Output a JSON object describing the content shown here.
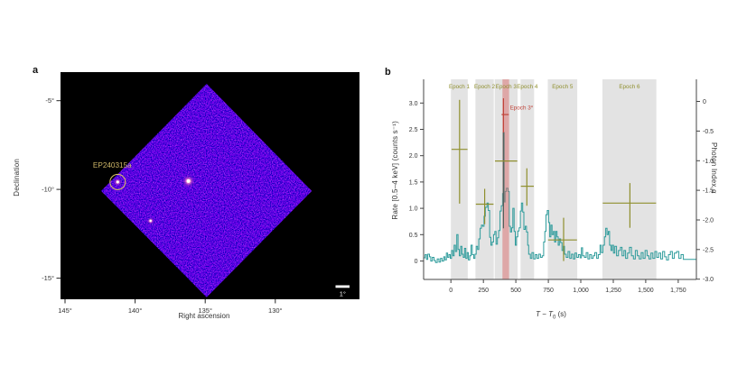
{
  "figure": {
    "panel_a_letter": "a",
    "panel_b_letter": "b",
    "panel_a": {
      "xlabel": "Right ascension",
      "ylabel": "Declination",
      "source_label": "EP240315a",
      "scale_bar_label": "1°"
    },
    "panel_b": {
      "xlabel_t1": "T",
      "xlabel_minus": " − ",
      "xlabel_t2": "T",
      "xlabel_sub": "0",
      "xlabel_unit": " (s)",
      "ylabel_left": "Rate [0.5–4 keV] (counts s⁻¹)",
      "ylabel_right": "Photon Index α"
    }
  },
  "colors": {
    "field_base": "#120c4a",
    "ring": "#d4ba69",
    "source_label": "#cfb768",
    "scalebar": "#ffffff",
    "curve": "#2d9b9b",
    "epoch_band": "#e3e3e3",
    "epoch_label": "#8f8f2e",
    "cross": "#8f8f2e",
    "cross_dark": "#50615d",
    "special": "#c0443a",
    "special_band": "#d96b6b",
    "axis": "#444444",
    "tick_text": "#333333"
  },
  "chart_data": [
    {
      "panel": "a",
      "type": "heatmap",
      "description": "Einstein Probe WXT X-ray sky image, diamond field of view with detected sources",
      "xlabel": "Right ascension",
      "ylabel": "Declination",
      "x_range_deg": [
        145.32,
        124.0
      ],
      "y_range_deg": [
        -3.39,
        -16.19
      ],
      "x_ticks": [
        {
          "v": 145,
          "label": "145°"
        },
        {
          "v": 140,
          "label": "140°"
        },
        {
          "v": 135,
          "label": "135°"
        },
        {
          "v": 130,
          "label": "130°"
        }
      ],
      "y_ticks": [
        {
          "v": -5,
          "label": "-5°"
        },
        {
          "v": -10,
          "label": "-10°"
        },
        {
          "v": -15,
          "label": "-15°"
        }
      ],
      "fov_corners_radec": [
        [
          134.9,
          -4.05
        ],
        [
          127.4,
          -10.09
        ],
        [
          134.9,
          -16.08
        ],
        [
          142.42,
          -10.09
        ]
      ],
      "sources": [
        {
          "name": "EP240315a",
          "ra": 141.24,
          "dec": -9.58,
          "glow_r": 4.5,
          "core_r": 1.5,
          "ringed": true
        },
        {
          "name": "bright central source",
          "ra": 136.2,
          "dec": -9.53,
          "glow_r": 7,
          "core_r": 2,
          "ringed": false
        },
        {
          "name": "faint source",
          "ra": 138.9,
          "dec": -11.77,
          "glow_r": 4,
          "core_r": 1.2,
          "ringed": false
        }
      ],
      "source_label": "EP240315a",
      "scale_bar": {
        "label": "1°",
        "deg": 1
      }
    },
    {
      "panel": "b",
      "type": "line",
      "description": "0.5–4 keV light curve of EP240315a with photon-index measurements per epoch",
      "xlabel": "T − T₀ (s)",
      "ylabel_left": "Rate [0.5–4 keV] (counts s⁻¹)",
      "ylabel_right": "Photon Index α",
      "x_range": [
        -210,
        1890
      ],
      "y_left_range": [
        -0.35,
        3.45
      ],
      "x_ticks": [
        {
          "v": 0,
          "label": "0"
        },
        {
          "v": 250,
          "label": "250"
        },
        {
          "v": 500,
          "label": "500"
        },
        {
          "v": 750,
          "label": "750"
        },
        {
          "v": 1000,
          "label": "1,000"
        },
        {
          "v": 1250,
          "label": "1,250"
        },
        {
          "v": 1500,
          "label": "1,500"
        },
        {
          "v": 1750,
          "label": "1,750"
        }
      ],
      "y_ticks_left": [
        {
          "v": 0,
          "label": "0"
        },
        {
          "v": 0.5,
          "label": "0.5"
        },
        {
          "v": 1.0,
          "label": "1.0"
        },
        {
          "v": 1.5,
          "label": "1.5"
        },
        {
          "v": 2.0,
          "label": "2.0"
        },
        {
          "v": 2.5,
          "label": "2.5"
        },
        {
          "v": 3.0,
          "label": "3.0"
        }
      ],
      "alpha_axis": {
        "alpha0_rate": 3.03,
        "rate_per_unit": 1.125,
        "ticks": [
          {
            "v": 0,
            "label": "0"
          },
          {
            "v": -0.5,
            "label": "-0.5"
          },
          {
            "v": -1.0,
            "label": "-1.0"
          },
          {
            "v": -1.5,
            "label": "-1.5"
          },
          {
            "v": -2.0,
            "label": "-2.0"
          },
          {
            "v": -2.5,
            "label": "-2.5"
          },
          {
            "v": -3.0,
            "label": "-3.0"
          }
        ]
      },
      "epochs": [
        {
          "name": "Epoch 1",
          "start": 0,
          "end": 130
        },
        {
          "name": "Epoch 2",
          "start": 189,
          "end": 330
        },
        {
          "name": "Epoch 3",
          "start": 337,
          "end": 513
        },
        {
          "name": "Epoch 4",
          "start": 536,
          "end": 640
        },
        {
          "name": "Epoch 5",
          "start": 746,
          "end": 973
        },
        {
          "name": "Epoch 6",
          "start": 1167,
          "end": 1582
        }
      ],
      "special_epoch": {
        "name": "Epoch 3*",
        "start": 397,
        "end": 448,
        "label_x": 455,
        "label_rate": 2.88
      },
      "crosses": [
        {
          "epoch": "Epoch 1",
          "x": 67,
          "x_lo": 5,
          "x_hi": 128,
          "rate": 2.12,
          "rate_lo": 1.09,
          "rate_hi": 3.06,
          "alpha": -0.81
        },
        {
          "epoch": "Epoch 2",
          "x": 260,
          "x_lo": 192,
          "x_hi": 328,
          "rate": 1.08,
          "rate_lo": 0.7,
          "rate_hi": 1.37,
          "alpha": -1.73
        },
        {
          "epoch": "Epoch 3",
          "x": 405,
          "x_lo": 339,
          "x_hi": 511,
          "rate": 1.9,
          "rate_lo": 0.62,
          "rate_hi": 2.44,
          "alpha": -1.0,
          "dark_vertical": true
        },
        {
          "epoch": "Epoch 3*",
          "x": 405,
          "x_lo": 390,
          "x_hi": 446,
          "rate": 2.78,
          "rate_lo": 2.44,
          "rate_hi": 3.09,
          "alpha": -0.22,
          "red": true
        },
        {
          "epoch": "Epoch 4",
          "x": 585,
          "x_lo": 538,
          "x_hi": 638,
          "rate": 1.42,
          "rate_lo": 1.05,
          "rate_hi": 1.76,
          "alpha": -1.43
        },
        {
          "epoch": "Epoch 5",
          "x": 868,
          "x_lo": 748,
          "x_hi": 971,
          "rate": 0.4,
          "rate_lo": 0.0,
          "rate_hi": 0.82,
          "alpha": -2.34
        },
        {
          "epoch": "Epoch 6",
          "x": 1378,
          "x_lo": 1169,
          "x_hi": 1580,
          "rate": 1.1,
          "rate_lo": 0.63,
          "rate_hi": 1.48,
          "alpha": -1.72
        }
      ],
      "light_curve_step_points": [
        [
          -210,
          0.06
        ],
        [
          -198,
          0.12
        ],
        [
          -188,
          0.03
        ],
        [
          -178,
          0.13
        ],
        [
          -165,
          0.08
        ],
        [
          -155,
          0.0
        ],
        [
          -143,
          0.07
        ],
        [
          -130,
          0.01
        ],
        [
          -118,
          -0.03
        ],
        [
          -105,
          0.04
        ],
        [
          -92,
          -0.02
        ],
        [
          -80,
          0.05
        ],
        [
          -68,
          0.0
        ],
        [
          -55,
          0.08
        ],
        [
          -45,
          0.02
        ],
        [
          -35,
          0.15
        ],
        [
          -25,
          0.07
        ],
        [
          -15,
          0.12
        ],
        [
          -5,
          0.05
        ],
        [
          5,
          0.2
        ],
        [
          15,
          0.1
        ],
        [
          25,
          0.3
        ],
        [
          35,
          0.18
        ],
        [
          45,
          0.5
        ],
        [
          55,
          0.22
        ],
        [
          65,
          0.1
        ],
        [
          75,
          0.28
        ],
        [
          85,
          0.13
        ],
        [
          95,
          0.07
        ],
        [
          105,
          0.24
        ],
        [
          115,
          0.05
        ],
        [
          125,
          0.16
        ],
        [
          135,
          0.02
        ],
        [
          145,
          0.1
        ],
        [
          155,
          0.3
        ],
        [
          165,
          0.12
        ],
        [
          175,
          0.05
        ],
        [
          185,
          0.13
        ],
        [
          195,
          0.28
        ],
        [
          205,
          0.22
        ],
        [
          215,
          0.42
        ],
        [
          225,
          0.62
        ],
        [
          235,
          0.68
        ],
        [
          245,
          0.66
        ],
        [
          255,
          0.85
        ],
        [
          265,
          1.02
        ],
        [
          278,
          1.1
        ],
        [
          288,
          0.96
        ],
        [
          298,
          0.45
        ],
        [
          308,
          0.3
        ],
        [
          318,
          0.36
        ],
        [
          328,
          0.5
        ],
        [
          338,
          0.56
        ],
        [
          348,
          0.32
        ],
        [
          358,
          0.44
        ],
        [
          368,
          0.58
        ],
        [
          378,
          0.95
        ],
        [
          388,
          1.05
        ],
        [
          398,
          1.28
        ],
        [
          403,
          2.44
        ],
        [
          411,
          1.12
        ],
        [
          417,
          1.32
        ],
        [
          427,
          1.38
        ],
        [
          440,
          1.32
        ],
        [
          449,
          0.66
        ],
        [
          458,
          0.55
        ],
        [
          467,
          0.63
        ],
        [
          477,
          1.0
        ],
        [
          487,
          0.56
        ],
        [
          496,
          0.3
        ],
        [
          505,
          0.46
        ],
        [
          515,
          0.57
        ],
        [
          525,
          0.63
        ],
        [
          535,
          0.95
        ],
        [
          543,
          1.1
        ],
        [
          553,
          0.93
        ],
        [
          562,
          0.6
        ],
        [
          572,
          0.66
        ],
        [
          582,
          0.55
        ],
        [
          591,
          0.3
        ],
        [
          599,
          0.13
        ],
        [
          612,
          0.05
        ],
        [
          624,
          0.16
        ],
        [
          637,
          0.04
        ],
        [
          650,
          0.12
        ],
        [
          663,
          0.05
        ],
        [
          676,
          0.13
        ],
        [
          690,
          0.07
        ],
        [
          703,
          0.1
        ],
        [
          714,
          0.36
        ],
        [
          723,
          0.56
        ],
        [
          732,
          0.88
        ],
        [
          742,
          0.96
        ],
        [
          752,
          0.73
        ],
        [
          761,
          0.46
        ],
        [
          770,
          0.68
        ],
        [
          779,
          0.5
        ],
        [
          789,
          0.56
        ],
        [
          798,
          0.36
        ],
        [
          807,
          0.56
        ],
        [
          817,
          0.46
        ],
        [
          826,
          0.3
        ],
        [
          835,
          0.42
        ],
        [
          845,
          0.35
        ],
        [
          855,
          0.2
        ],
        [
          865,
          0.28
        ],
        [
          875,
          0.13
        ],
        [
          888,
          0.07
        ],
        [
          902,
          0.18
        ],
        [
          915,
          0.05
        ],
        [
          928,
          0.13
        ],
        [
          942,
          0.04
        ],
        [
          955,
          0.15
        ],
        [
          968,
          0.07
        ],
        [
          982,
          0.12
        ],
        [
          995,
          0.06
        ],
        [
          1005,
          0.25
        ],
        [
          1014,
          0.1
        ],
        [
          1028,
          0.07
        ],
        [
          1042,
          0.16
        ],
        [
          1055,
          0.04
        ],
        [
          1068,
          0.12
        ],
        [
          1082,
          0.05
        ],
        [
          1095,
          0.1
        ],
        [
          1108,
          0.16
        ],
        [
          1122,
          0.05
        ],
        [
          1135,
          0.12
        ],
        [
          1148,
          0.3
        ],
        [
          1158,
          0.16
        ],
        [
          1170,
          0.3
        ],
        [
          1182,
          0.46
        ],
        [
          1192,
          0.62
        ],
        [
          1202,
          0.5
        ],
        [
          1212,
          0.56
        ],
        [
          1222,
          0.3
        ],
        [
          1232,
          0.2
        ],
        [
          1242,
          0.3
        ],
        [
          1252,
          0.15
        ],
        [
          1262,
          0.28
        ],
        [
          1275,
          0.1
        ],
        [
          1290,
          0.2
        ],
        [
          1305,
          0.26
        ],
        [
          1318,
          0.1
        ],
        [
          1332,
          0.2
        ],
        [
          1345,
          0.05
        ],
        [
          1360,
          0.15
        ],
        [
          1375,
          0.26
        ],
        [
          1390,
          0.1
        ],
        [
          1405,
          0.04
        ],
        [
          1420,
          0.2
        ],
        [
          1435,
          0.1
        ],
        [
          1450,
          0.04
        ],
        [
          1465,
          0.16
        ],
        [
          1480,
          0.05
        ],
        [
          1495,
          0.2
        ],
        [
          1510,
          0.1
        ],
        [
          1525,
          0.04
        ],
        [
          1540,
          0.15
        ],
        [
          1555,
          0.05
        ],
        [
          1570,
          0.18
        ],
        [
          1585,
          0.07
        ],
        [
          1600,
          0.15
        ],
        [
          1615,
          0.04
        ],
        [
          1630,
          0.18
        ],
        [
          1645,
          0.08
        ],
        [
          1660,
          0.02
        ],
        [
          1675,
          0.12
        ],
        [
          1690,
          0.18
        ],
        [
          1705,
          0.05
        ],
        [
          1720,
          0.15
        ],
        [
          1738,
          0.18
        ],
        [
          1755,
          0.05
        ],
        [
          1772,
          0.12
        ],
        [
          1790,
          0.03
        ],
        [
          1890,
          0.03
        ]
      ]
    }
  ]
}
